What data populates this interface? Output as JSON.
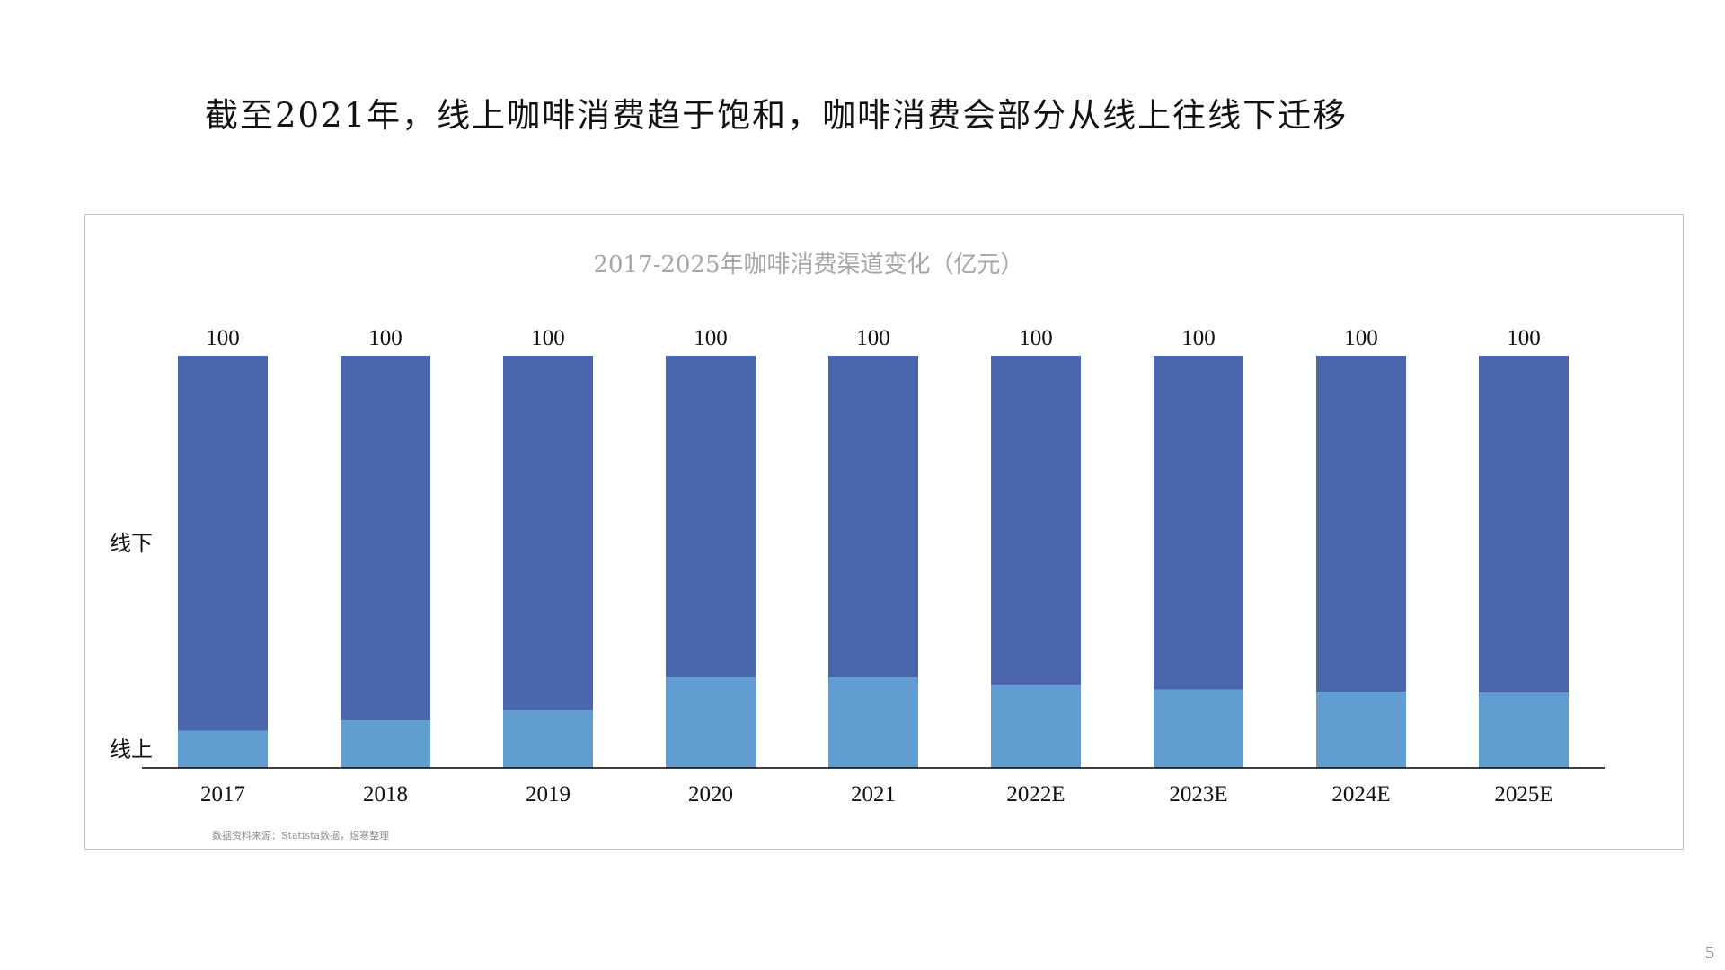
{
  "slide": {
    "title": "截至2021年，线上咖啡消费趋于饱和，咖啡消费会部分从线上往线下迁移",
    "source_note": "数据资料来源：Statista数据，煜寒整理",
    "page_number": "5"
  },
  "chart_data": {
    "type": "bar",
    "stacked": true,
    "title": "2017-2025年咖啡消费渠道变化（亿元）",
    "xlabel": "",
    "ylabel": "",
    "categories": [
      "2017",
      "2018",
      "2019",
      "2020",
      "2021",
      "2022E",
      "2023E",
      "2024E",
      "2025E"
    ],
    "totals": [
      100,
      100,
      100,
      100,
      100,
      100,
      100,
      100,
      100
    ],
    "series": [
      {
        "name": "线上",
        "color": "#629dd1",
        "values": [
          9,
          11.5,
          14,
          22,
          22,
          20,
          19,
          18.5,
          18.3
        ]
      },
      {
        "name": "线下",
        "color": "#4a66ac",
        "values": [
          91,
          88.5,
          86,
          78,
          78,
          80,
          81,
          81.5,
          81.7
        ]
      }
    ],
    "ylim": [
      0,
      100
    ],
    "grid": false,
    "legend": "series labels on left side"
  }
}
